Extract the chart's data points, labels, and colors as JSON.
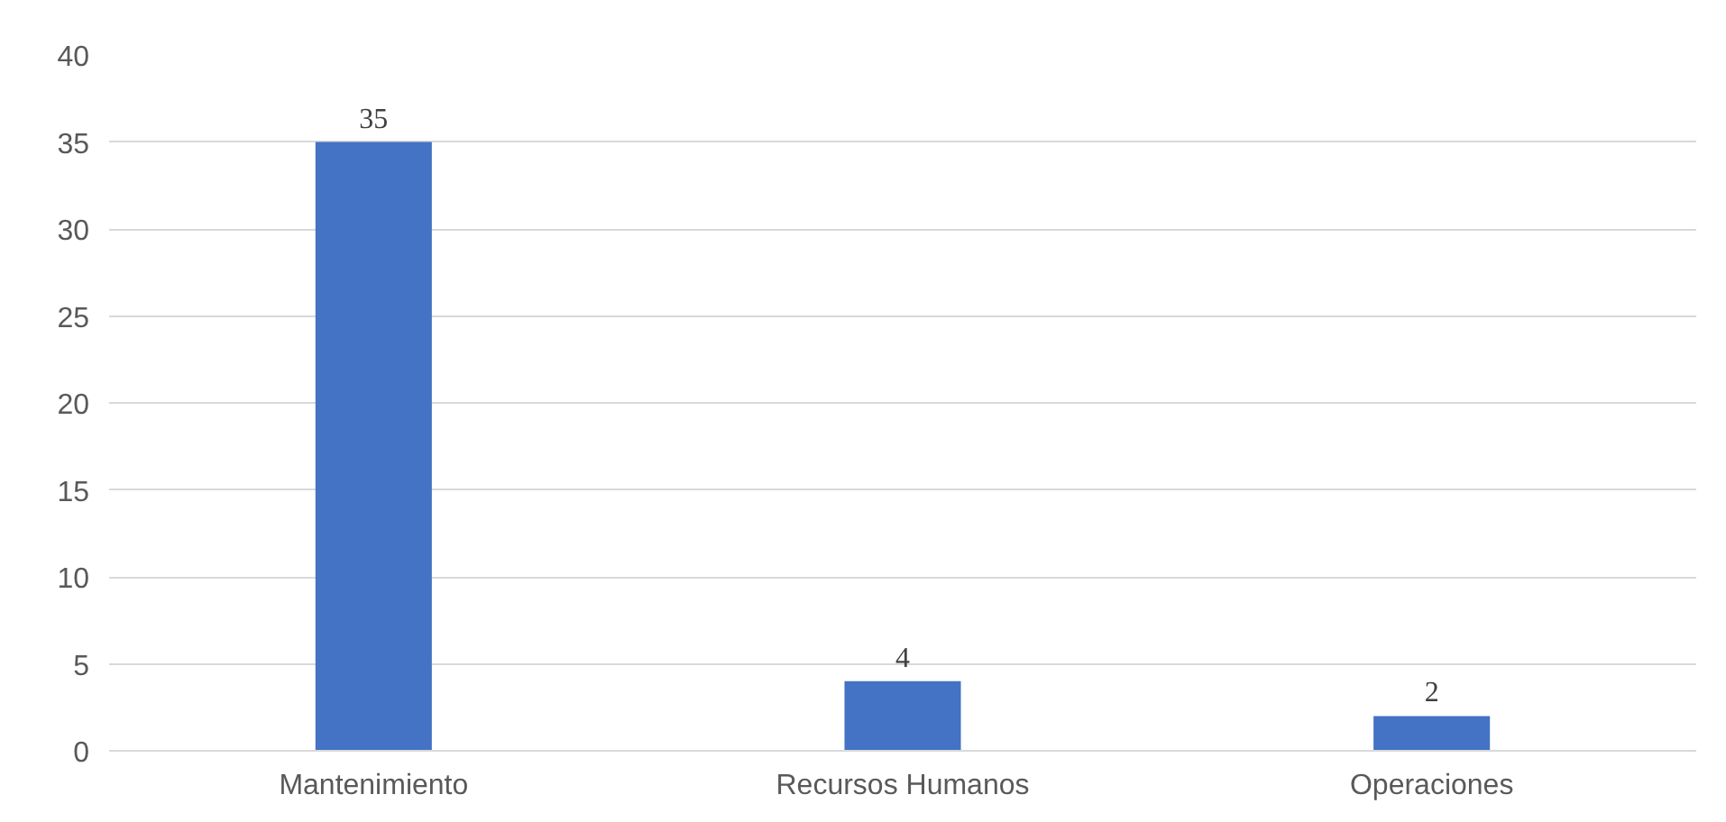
{
  "chart_data": {
    "type": "bar",
    "categories": [
      "Mantenimiento",
      "Recursos Humanos",
      "Operaciones"
    ],
    "values": [
      35,
      4,
      2
    ],
    "color": "#4472c4",
    "ylim": [
      0,
      40
    ],
    "yticks": [
      0,
      5,
      10,
      15,
      20,
      25,
      30,
      35,
      40
    ],
    "grid": "y",
    "data_labels": true
  }
}
